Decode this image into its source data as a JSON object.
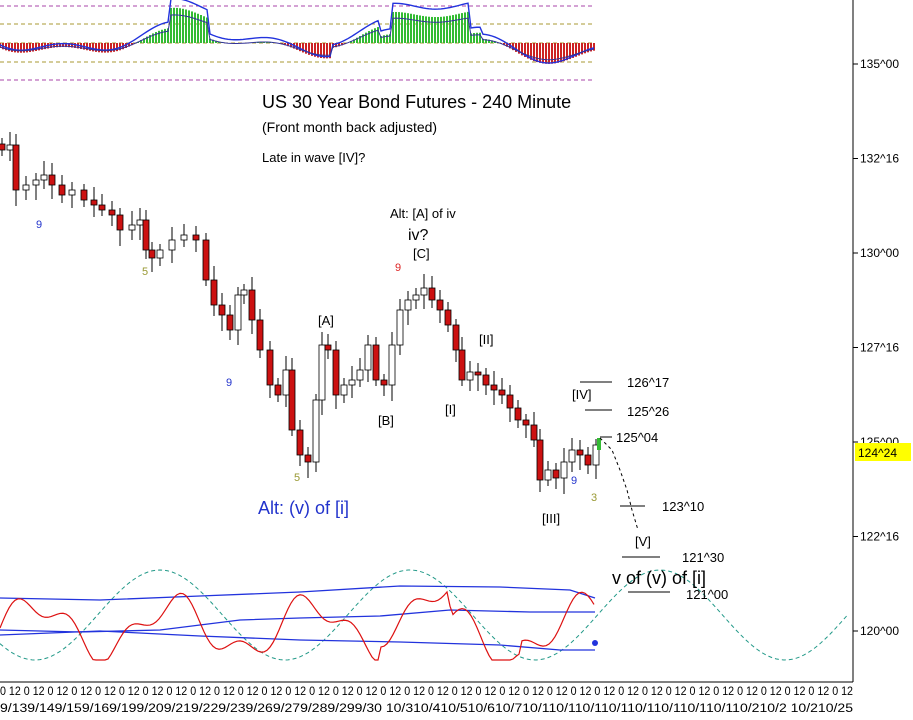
{
  "chart_data": {
    "type": "candlestick",
    "title": "US 30 Year Bond Futures - 240 Minute",
    "subtitle": "(Front month back adjusted)",
    "note": "Late in wave [IV]?",
    "y_axis": {
      "ticks": [
        "135^00",
        "132^16",
        "130^00",
        "127^16",
        "125^00",
        "122^16",
        "120^00"
      ],
      "tick_values": [
        135.0,
        132.5,
        130.0,
        127.5,
        125.0,
        122.5,
        120.0
      ],
      "current_price": "124^24",
      "current_value": 124.75
    },
    "x_axis": {
      "row1": "0 12 0 12 0 12 0 12 0 12 0 12 0 12 0 12 0 12 0 12 0 12 0 12 0 12 0 12 0 12 0 12 0 12 0 12 0 12 0 12 0 12 0 12 0 12 0 12 0 12 0 12 0 12 0 12 0 12 0 12 0 12 0 12 0 12 0 12 0 12 0 12",
      "row2": "9/139/149/159/169/199/209/219/229/239/269/279/289/299/30 10/310/410/510/610/710/110/110/110/110/110/110/110/110/210/2 10/210/25"
    },
    "wave_labels": {
      "alt_a_iv": "Alt: [A] of iv",
      "iv": "iv?",
      "c": "[C]",
      "a": "[A]",
      "b": "[B]",
      "w1": "[I]",
      "w2": "[II]",
      "w3": "[III]",
      "w4": "[IV]",
      "w5": "[V]",
      "alt_v": "Alt: (v) of [i]",
      "v_of_v": "v of (v) of [i]"
    },
    "count_labels": [
      "9",
      "5",
      "9",
      "5",
      "9",
      "9",
      "3"
    ],
    "price_levels": [
      "126^17",
      "125^26",
      "125^04",
      "123^10",
      "121^30",
      "121^00"
    ],
    "price_level_values": [
      126.53,
      125.81,
      125.13,
      123.31,
      121.94,
      121.0
    ],
    "colors": {
      "bear_candle": "#cc1111",
      "bull_candle": "#ffffff",
      "oscillator_blue": "#2233dd",
      "oscillator_red": "#dd1111",
      "cycle_teal": "#229988",
      "histogram_red": "#cc2222",
      "histogram_green": "#33bb33",
      "price_box": "#ffff00",
      "dashed_purple": "#aa44aa",
      "dashed_olive": "#aa9933",
      "wave_blue": "#2233cc"
    }
  }
}
